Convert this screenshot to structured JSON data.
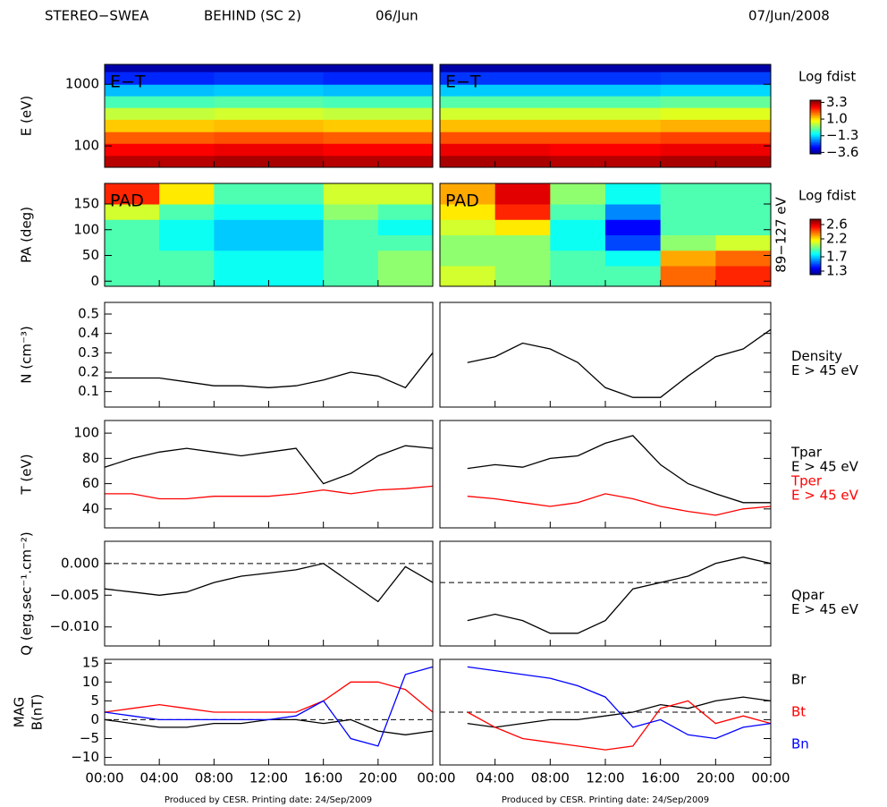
{
  "header": {
    "instrument": "STEREO−SWEA",
    "spacecraft": "BEHIND (SC 2)",
    "date_left": "06/Jun",
    "date_right": "07/Jun/2008"
  },
  "footers": [
    "Produced by CESR.   Printing date: 24/Sep/2009",
    "Produced by CESR.   Printing date: 24/Sep/2009"
  ],
  "time_axis": {
    "xlim": [
      0,
      48
    ],
    "xticks": [
      {
        "value": 0,
        "label": "00:00"
      },
      {
        "value": 4,
        "label": "04:00"
      },
      {
        "value": 8,
        "label": "08:00"
      },
      {
        "value": 12,
        "label": "12:00"
      },
      {
        "value": 16,
        "label": "16:00"
      },
      {
        "value": 20,
        "label": "20:00"
      },
      {
        "value": 24,
        "label": "00:00"
      },
      {
        "value": 28,
        "label": "04:00"
      },
      {
        "value": 32,
        "label": "08:00"
      },
      {
        "value": 36,
        "label": "12:00"
      },
      {
        "value": 40,
        "label": "16:00"
      },
      {
        "value": 44,
        "label": "20:00"
      },
      {
        "value": 48,
        "label": "00:00"
      }
    ]
  },
  "chart_data": [
    {
      "type": "heatmap",
      "label": "E−T",
      "ylabel": "E (eV)",
      "log": true,
      "ylim": [
        45,
        2100
      ],
      "yticks": [
        100,
        1000
      ],
      "xbins": [
        0,
        8,
        16,
        24,
        32,
        40,
        48
      ],
      "ybins": [
        45,
        70,
        110,
        170,
        270,
        420,
        650,
        1000,
        1600,
        2100
      ],
      "z": [
        [
          3.2,
          3.3,
          3.2,
          3.3,
          3.2,
          3.3
        ],
        [
          2.7,
          2.8,
          2.7,
          2.8,
          2.7,
          2.8
        ],
        [
          2.0,
          2.1,
          2.0,
          2.1,
          2.1,
          2.2
        ],
        [
          1.2,
          1.3,
          1.2,
          1.3,
          1.3,
          1.4
        ],
        [
          0.4,
          0.5,
          0.4,
          0.5,
          0.5,
          0.6
        ],
        [
          -0.5,
          -0.4,
          -0.5,
          -0.4,
          -0.4,
          -0.3
        ],
        [
          -1.5,
          -1.4,
          -1.5,
          -1.4,
          -1.4,
          -1.3
        ],
        [
          -2.6,
          -2.5,
          -2.6,
          -2.5,
          -2.5,
          -2.4
        ],
        [
          -3.5,
          -3.5,
          -3.5,
          -3.5,
          -3.5,
          -3.5
        ]
      ],
      "colorbar_title": "Log fdist",
      "clim": [
        -3.8,
        3.6
      ],
      "cticks": [
        3.3,
        {
          "value": 1.0,
          "label": "1.0"
        },
        {
          "value": -1.3,
          "label": "−1.3"
        },
        {
          "value": -3.6,
          "label": "−3.6"
        }
      ]
    },
    {
      "type": "heatmap",
      "label": "PAD",
      "ylabel": "PA (deg)",
      "side_label": "89−127 eV",
      "ylim": [
        -10,
        190
      ],
      "yticks": [
        0,
        50,
        100,
        150
      ],
      "xbins": [
        0,
        4,
        8,
        12,
        16,
        20,
        24,
        28,
        32,
        36,
        40,
        44,
        48
      ],
      "ybins": [
        -10,
        30,
        60,
        90,
        120,
        150,
        190
      ],
      "z": [
        [
          1.9,
          1.9,
          1.8,
          1.8,
          1.9,
          2.0,
          2.1,
          2.0,
          1.9,
          1.9,
          2.4,
          2.5
        ],
        [
          1.9,
          1.9,
          1.8,
          1.8,
          1.9,
          2.0,
          2.0,
          2.0,
          1.9,
          1.8,
          2.3,
          2.4
        ],
        [
          1.9,
          1.8,
          1.7,
          1.7,
          1.9,
          1.9,
          2.0,
          2.0,
          1.8,
          1.5,
          2.0,
          2.1
        ],
        [
          1.9,
          1.8,
          1.7,
          1.7,
          1.9,
          1.8,
          2.1,
          2.2,
          1.8,
          1.4,
          1.9,
          1.9
        ],
        [
          2.1,
          1.9,
          1.8,
          1.8,
          2.0,
          1.9,
          2.2,
          2.5,
          1.9,
          1.6,
          1.9,
          1.9
        ],
        [
          2.5,
          2.2,
          1.9,
          1.9,
          2.1,
          2.1,
          2.3,
          2.6,
          2.0,
          1.8,
          1.9,
          1.9
        ]
      ],
      "colorbar_title": "Log fdist",
      "clim": [
        1.2,
        2.75
      ],
      "cticks": [
        2.6,
        2.2,
        1.7,
        1.3
      ]
    },
    {
      "type": "line",
      "ylabel": "N (cm⁻³)",
      "ylim": [
        0.02,
        0.56
      ],
      "yticks": [
        0.1,
        0.2,
        0.3,
        0.4,
        0.5
      ],
      "x": [
        0,
        2,
        4,
        6,
        8,
        10,
        12,
        14,
        16,
        18,
        20,
        22,
        24,
        26,
        28,
        30,
        32,
        34,
        36,
        38,
        40,
        42,
        44,
        46,
        48
      ],
      "series": [
        {
          "name": "Density",
          "note": "E > 45 eV",
          "color": "#000000",
          "values": [
            0.17,
            0.17,
            0.17,
            0.15,
            0.13,
            0.13,
            0.12,
            0.13,
            0.16,
            0.2,
            0.18,
            0.12,
            0.3,
            0.25,
            0.28,
            0.35,
            0.32,
            0.25,
            0.12,
            0.07,
            0.07,
            0.18,
            0.28,
            0.32,
            0.42
          ]
        }
      ]
    },
    {
      "type": "line",
      "ylabel": "T (eV)",
      "ylim": [
        25,
        110
      ],
      "yticks": [
        40,
        60,
        80,
        100
      ],
      "x": [
        0,
        2,
        4,
        6,
        8,
        10,
        12,
        14,
        16,
        18,
        20,
        22,
        24,
        26,
        28,
        30,
        32,
        34,
        36,
        38,
        40,
        42,
        44,
        46,
        48
      ],
      "series": [
        {
          "name": "Tpar",
          "note": "E > 45 eV",
          "color": "#000000",
          "values": [
            73,
            80,
            85,
            88,
            85,
            82,
            85,
            88,
            60,
            68,
            82,
            90,
            88,
            72,
            75,
            73,
            80,
            82,
            92,
            98,
            75,
            60,
            52,
            45,
            45
          ]
        },
        {
          "name": "Tper",
          "note": "E > 45 eV",
          "color": "#ff0000",
          "values": [
            52,
            52,
            48,
            48,
            50,
            50,
            50,
            52,
            55,
            52,
            55,
            56,
            58,
            50,
            48,
            45,
            42,
            45,
            52,
            48,
            42,
            38,
            35,
            40,
            42
          ]
        }
      ]
    },
    {
      "type": "line",
      "ylabel": "Q (erg.sec⁻¹.cm⁻²)",
      "ylim": [
        -0.013,
        0.0035
      ],
      "yticks": [
        {
          "value": -0.01,
          "label": "−0.010"
        },
        {
          "value": -0.005,
          "label": "−0.005"
        },
        {
          "value": 0,
          "label": "0.000"
        }
      ],
      "dashed_levels": [
        0,
        -0.003
      ],
      "x": [
        0,
        2,
        4,
        6,
        8,
        10,
        12,
        14,
        16,
        18,
        20,
        22,
        24,
        26,
        28,
        30,
        32,
        34,
        36,
        38,
        40,
        42,
        44,
        46,
        48
      ],
      "series": [
        {
          "name": "Qpar",
          "note": "E > 45 eV",
          "color": "#000000",
          "values": [
            -0.004,
            -0.0045,
            -0.005,
            -0.0045,
            -0.003,
            -0.002,
            -0.0015,
            -0.001,
            0,
            -0.003,
            -0.006,
            -0.0005,
            -0.003,
            -0.009,
            -0.008,
            -0.009,
            -0.011,
            -0.011,
            -0.009,
            -0.004,
            -0.003,
            -0.002,
            0,
            0.001,
            0
          ]
        }
      ]
    },
    {
      "type": "line",
      "ylabel": [
        "MAG",
        "B(nT)"
      ],
      "ylim": [
        -12,
        16
      ],
      "yticks": [
        {
          "value": -10,
          "label": "−10"
        },
        {
          "value": -5,
          "label": "−5"
        },
        0,
        5,
        10,
        15
      ],
      "dashed_levels": [
        0,
        2
      ],
      "x": [
        0,
        2,
        4,
        6,
        8,
        10,
        12,
        14,
        16,
        18,
        20,
        22,
        24,
        26,
        28,
        30,
        32,
        34,
        36,
        38,
        40,
        42,
        44,
        46,
        48
      ],
      "series": [
        {
          "name": "Br",
          "color": "#000000",
          "values": [
            0,
            -1,
            -2,
            -2,
            -1,
            -1,
            0,
            0,
            -1,
            0,
            -3,
            -4,
            -3,
            -1,
            -2,
            -1,
            0,
            0,
            1,
            2,
            4,
            3,
            5,
            6,
            5
          ]
        },
        {
          "name": "Bt",
          "color": "#ff0000",
          "values": [
            2,
            3,
            4,
            3,
            2,
            2,
            2,
            2,
            5,
            10,
            10,
            8,
            2,
            2,
            -2,
            -5,
            -6,
            -7,
            -8,
            -7,
            3,
            5,
            -1,
            1,
            -1
          ]
        },
        {
          "name": "Bn",
          "color": "#0000ff",
          "values": [
            2,
            1,
            0,
            0,
            0,
            0,
            0,
            1,
            5,
            -5,
            -7,
            12,
            14,
            14,
            13,
            12,
            11,
            9,
            6,
            -2,
            0,
            -4,
            -5,
            -2,
            -1
          ]
        }
      ]
    }
  ]
}
